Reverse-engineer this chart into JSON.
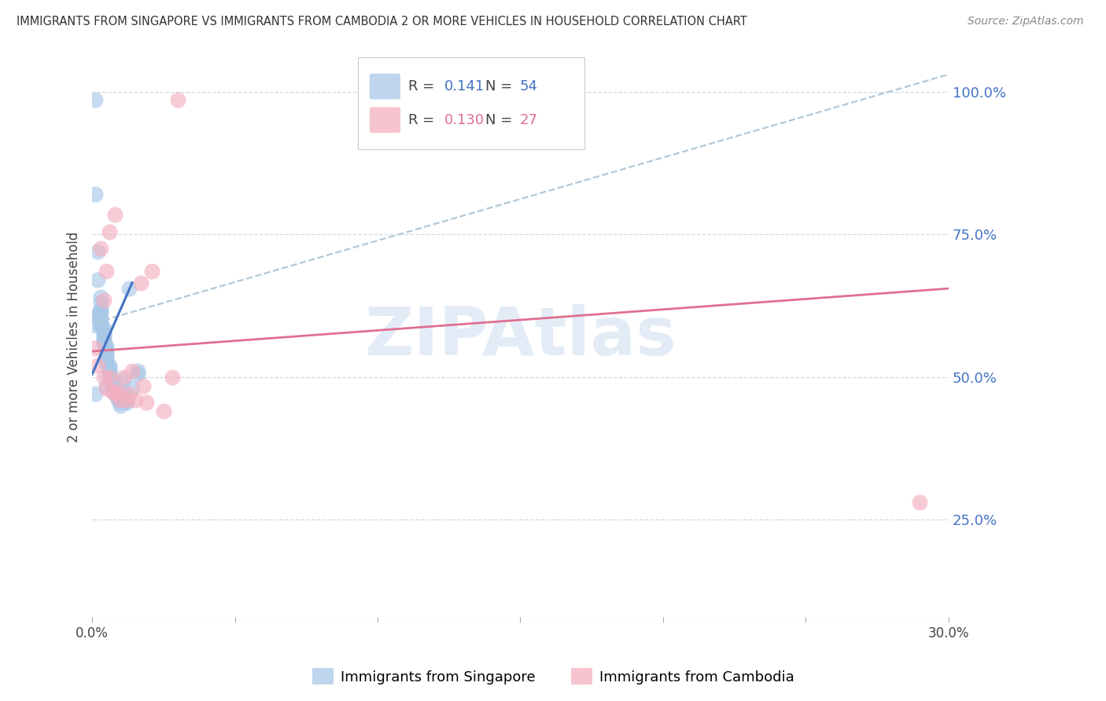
{
  "title": "IMMIGRANTS FROM SINGAPORE VS IMMIGRANTS FROM CAMBODIA 2 OR MORE VEHICLES IN HOUSEHOLD CORRELATION CHART",
  "source": "Source: ZipAtlas.com",
  "ylabel": "2 or more Vehicles in Household",
  "xlim": [
    0.0,
    0.3
  ],
  "ylim": [
    0.08,
    1.06
  ],
  "singapore_R": "0.141",
  "singapore_N": "54",
  "cambodia_R": "0.130",
  "cambodia_N": "27",
  "singapore_color": "#a8c8e8",
  "cambodia_color": "#f4b0c0",
  "sg_line_color": "#4472c4",
  "cam_line_color": "#e07090",
  "dash_line_color": "#b0c8d8",
  "watermark_color": "#ccdcf0",
  "right_yticks": [
    0.25,
    0.5,
    0.75,
    1.0
  ],
  "right_yticklabels": [
    "25.0%",
    "50.0%",
    "75.0%",
    "100.0%"
  ],
  "grid_color": "#d0d8e0",
  "sg_x": [
    0.001,
    0.001,
    0.002,
    0.002,
    0.003,
    0.003,
    0.003,
    0.003,
    0.003,
    0.003,
    0.003,
    0.004,
    0.004,
    0.004,
    0.004,
    0.004,
    0.004,
    0.005,
    0.005,
    0.005,
    0.005,
    0.005,
    0.005,
    0.005,
    0.006,
    0.006,
    0.006,
    0.006,
    0.006,
    0.007,
    0.007,
    0.007,
    0.007,
    0.008,
    0.008,
    0.009,
    0.009,
    0.01,
    0.01,
    0.011,
    0.011,
    0.012,
    0.012,
    0.013,
    0.014,
    0.016,
    0.016,
    0.001,
    0.001,
    0.002,
    0.002,
    0.003,
    0.004,
    0.005
  ],
  "sg_y": [
    0.985,
    0.82,
    0.72,
    0.67,
    0.64,
    0.63,
    0.62,
    0.61,
    0.6,
    0.595,
    0.59,
    0.585,
    0.58,
    0.575,
    0.57,
    0.565,
    0.56,
    0.555,
    0.55,
    0.545,
    0.54,
    0.535,
    0.53,
    0.525,
    0.52,
    0.515,
    0.51,
    0.505,
    0.5,
    0.495,
    0.49,
    0.485,
    0.48,
    0.475,
    0.47,
    0.465,
    0.46,
    0.455,
    0.45,
    0.495,
    0.475,
    0.46,
    0.455,
    0.655,
    0.48,
    0.505,
    0.51,
    0.59,
    0.47,
    0.605,
    0.61,
    0.615,
    0.56,
    0.485
  ],
  "cam_x": [
    0.001,
    0.002,
    0.003,
    0.004,
    0.004,
    0.005,
    0.005,
    0.006,
    0.006,
    0.007,
    0.008,
    0.008,
    0.009,
    0.01,
    0.011,
    0.012,
    0.013,
    0.014,
    0.015,
    0.017,
    0.018,
    0.019,
    0.021,
    0.025,
    0.028,
    0.03,
    0.29
  ],
  "cam_y": [
    0.55,
    0.52,
    0.725,
    0.5,
    0.635,
    0.685,
    0.48,
    0.5,
    0.755,
    0.475,
    0.47,
    0.785,
    0.475,
    0.46,
    0.5,
    0.46,
    0.47,
    0.51,
    0.46,
    0.665,
    0.485,
    0.455,
    0.685,
    0.44,
    0.5,
    0.985,
    0.28
  ],
  "sg_line_x0": 0.0,
  "sg_line_y0": 0.505,
  "sg_line_x1": 0.014,
  "sg_line_y1": 0.665,
  "dash_line_x0": 0.001,
  "dash_line_y0": 0.595,
  "dash_line_x1": 0.3,
  "dash_line_y1": 1.03,
  "cam_line_x0": 0.0,
  "cam_line_y0": 0.545,
  "cam_line_x1": 0.3,
  "cam_line_y1": 0.655
}
